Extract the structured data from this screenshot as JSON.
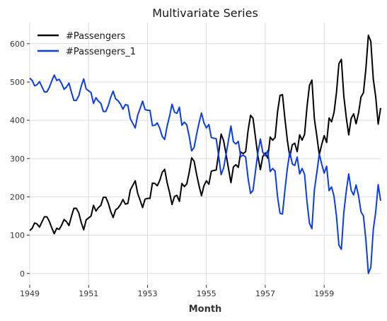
{
  "chart_data": {
    "type": "line",
    "title": "Multivariate Series",
    "xlabel": "Month",
    "ylabel": "",
    "x_start": "1949-01",
    "x_end": "1960-12",
    "x_frequency": "monthly",
    "xlim": [
      1949.0,
      1960.917
    ],
    "ylim": [
      -30,
      655
    ],
    "x_ticks": [
      1949,
      1951,
      1953,
      1955,
      1957,
      1959
    ],
    "x_tick_labels": [
      "1949",
      "1951",
      "1953",
      "1955",
      "1957",
      "1959"
    ],
    "y_ticks": [
      0,
      100,
      200,
      300,
      400,
      500,
      600
    ],
    "y_tick_labels": [
      "0",
      "100",
      "200",
      "300",
      "400",
      "500",
      "600"
    ],
    "grid": true,
    "legend_position": "top-left",
    "series": [
      {
        "name": "#Passengers",
        "color": "#000000",
        "values": [
          112,
          118,
          132,
          129,
          121,
          135,
          148,
          148,
          136,
          119,
          104,
          118,
          115,
          126,
          141,
          135,
          125,
          149,
          170,
          170,
          158,
          133,
          114,
          140,
          145,
          150,
          178,
          163,
          172,
          178,
          199,
          199,
          184,
          162,
          146,
          166,
          171,
          180,
          193,
          181,
          183,
          218,
          230,
          242,
          209,
          191,
          172,
          194,
          196,
          196,
          236,
          235,
          229,
          243,
          264,
          272,
          237,
          211,
          180,
          201,
          204,
          188,
          235,
          227,
          234,
          264,
          302,
          293,
          259,
          229,
          203,
          229,
          242,
          233,
          267,
          269,
          270,
          315,
          364,
          347,
          312,
          274,
          237,
          278,
          284,
          277,
          317,
          313,
          318,
          374,
          413,
          405,
          355,
          306,
          271,
          306,
          315,
          301,
          356,
          348,
          355,
          422,
          465,
          467,
          404,
          347,
          305,
          336,
          340,
          318,
          362,
          348,
          363,
          435,
          491,
          505,
          404,
          359,
          310,
          337,
          360,
          342,
          406,
          396,
          420,
          472,
          548,
          559,
          463,
          407,
          362,
          405,
          417,
          391,
          419,
          461,
          472,
          535,
          622,
          606,
          508,
          461,
          390,
          432
        ]
      },
      {
        "name": "#Passengers_1",
        "color": "#0a3de8",
        "values": [
          510,
          504,
          490,
          493,
          501,
          487,
          474,
          474,
          486,
          503,
          518,
          504,
          507,
          496,
          481,
          487,
          497,
          473,
          452,
          452,
          464,
          489,
          508,
          482,
          477,
          472,
          444,
          459,
          450,
          444,
          423,
          423,
          438,
          460,
          476,
          456,
          451,
          442,
          429,
          441,
          439,
          404,
          392,
          380,
          413,
          431,
          450,
          428,
          426,
          426,
          386,
          387,
          393,
          379,
          358,
          350,
          385,
          411,
          442,
          421,
          418,
          434,
          387,
          395,
          388,
          358,
          320,
          329,
          363,
          393,
          419,
          393,
          380,
          389,
          355,
          353,
          352,
          307,
          258,
          275,
          310,
          348,
          385,
          344,
          338,
          345,
          305,
          309,
          304,
          248,
          209,
          217,
          267,
          316,
          351,
          316,
          307,
          321,
          266,
          274,
          267,
          200,
          157,
          155,
          218,
          275,
          317,
          286,
          282,
          304,
          260,
          274,
          259,
          187,
          131,
          117,
          218,
          263,
          312,
          285,
          262,
          280,
          216,
          226,
          202,
          150,
          74,
          63,
          159,
          215,
          260,
          217,
          205,
          231,
          203,
          161,
          150,
          87,
          0,
          16,
          114,
          161,
          232,
          190
        ]
      }
    ]
  }
}
